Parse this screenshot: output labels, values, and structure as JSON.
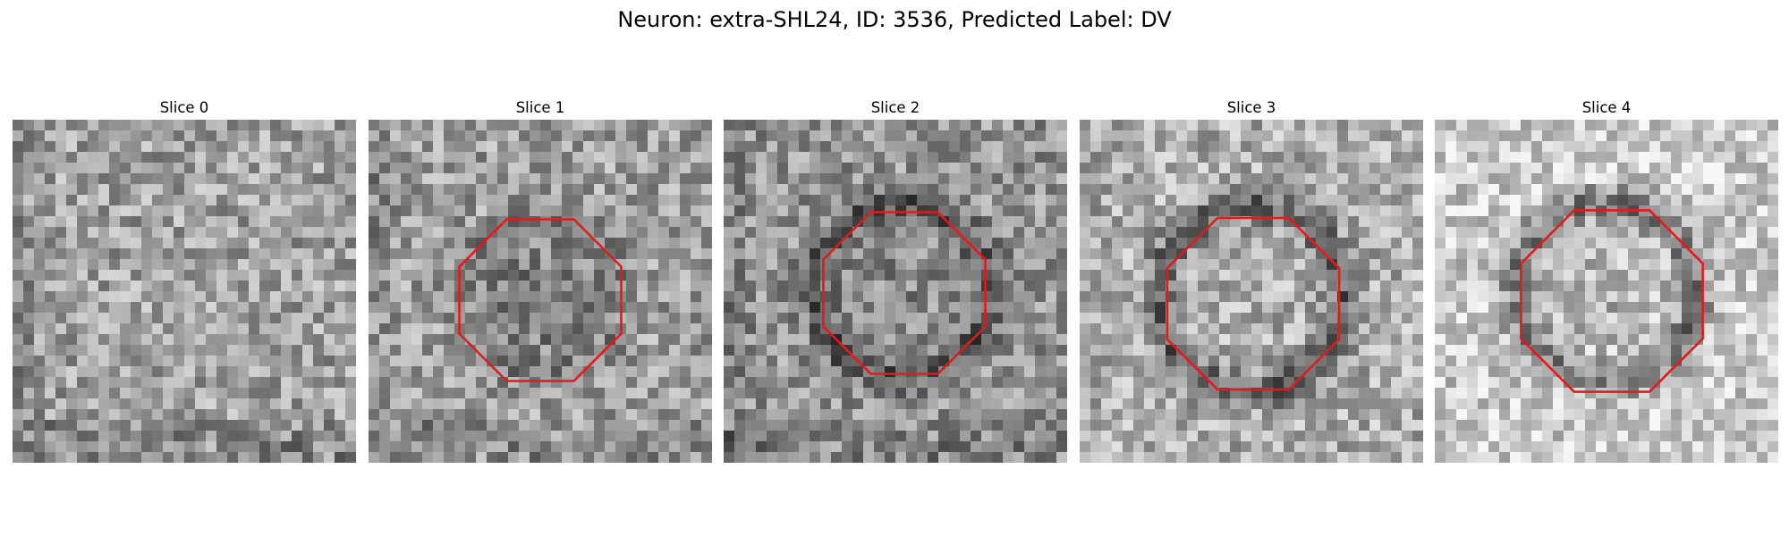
{
  "figure": {
    "title": "Neuron: extra-SHL24, ID: 3536, Predicted Label: DV",
    "overlay_color": "#e31a1c",
    "panels": [
      {
        "title": "Slice 0",
        "outline": false,
        "overlay_type": "none"
      },
      {
        "title": "Slice 1",
        "outline": true,
        "overlay_type": "octagon"
      },
      {
        "title": "Slice 2",
        "outline": true,
        "overlay_type": "octagon"
      },
      {
        "title": "Slice 3",
        "outline": true,
        "overlay_type": "octagon"
      },
      {
        "title": "Slice 4",
        "outline": true,
        "overlay_type": "octagon"
      }
    ]
  }
}
